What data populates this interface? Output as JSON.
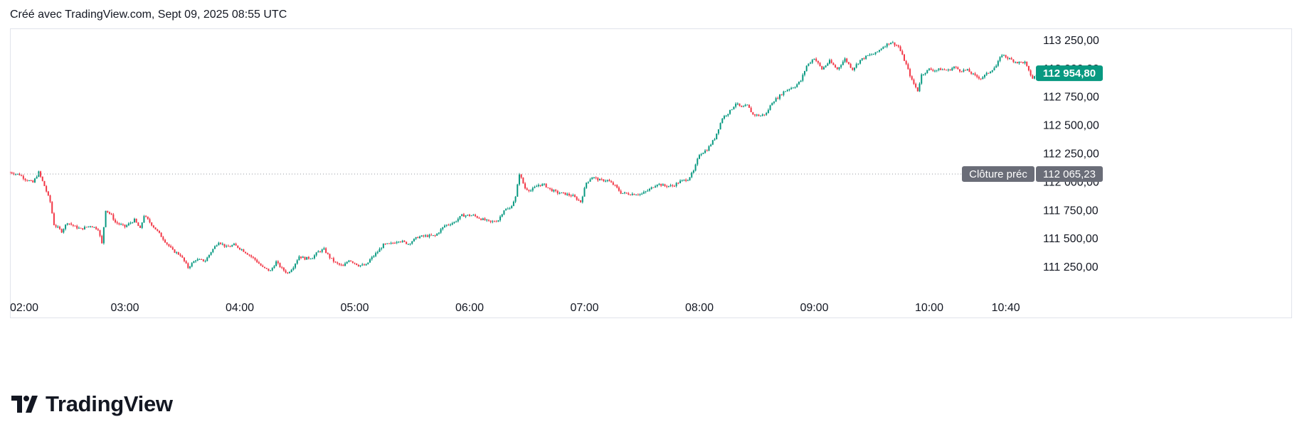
{
  "header": {
    "caption": "Créé avec TradingView.com, Sept 09, 2025 08:55 UTC"
  },
  "brand": {
    "logo_text": "TradingView"
  },
  "colors": {
    "up": "#089981",
    "down": "#f23645",
    "text": "#131722",
    "grid_border": "#e0e3eb",
    "prev_close_badge": "#6a6d78",
    "last_price_badge": "#089981"
  },
  "labels": {
    "last_price": "112 954,80",
    "prev_close_label": "Clôture préc",
    "prev_close_value": "112 065,23"
  },
  "chart_data": {
    "type": "candlestick",
    "title": "",
    "xlabel": "",
    "ylabel": "",
    "ylim": [
      111000,
      113350
    ],
    "y_ticks": [
      {
        "value": 111250,
        "label": "111 250,00"
      },
      {
        "value": 111500,
        "label": "111 500,00"
      },
      {
        "value": 111750,
        "label": "111 750,00"
      },
      {
        "value": 112000,
        "label": "112 000,00"
      },
      {
        "value": 112250,
        "label": "112 250,00"
      },
      {
        "value": 112500,
        "label": "112 500,00"
      },
      {
        "value": 112750,
        "label": "112 750,00"
      },
      {
        "value": 113000,
        "label": "113 000,00"
      },
      {
        "value": 113250,
        "label": "113 250,00"
      }
    ],
    "x_ticks": [
      {
        "value": 120,
        "label": "02:00"
      },
      {
        "value": 180,
        "label": "03:00"
      },
      {
        "value": 240,
        "label": "04:00"
      },
      {
        "value": 300,
        "label": "05:00"
      },
      {
        "value": 360,
        "label": "06:00"
      },
      {
        "value": 420,
        "label": "07:00"
      },
      {
        "value": 480,
        "label": "08:00"
      },
      {
        "value": 540,
        "label": "09:00"
      },
      {
        "value": 600,
        "label": "10:00"
      },
      {
        "value": 640,
        "label": "10:40"
      }
    ],
    "x_unit": "minutes after 00:00 UTC",
    "xlim": [
      120,
      655
    ],
    "last_price": 112954.8,
    "previous_close": 112065.23,
    "close_path": [
      [
        120,
        112080
      ],
      [
        125,
        112060
      ],
      [
        128,
        112020
      ],
      [
        132,
        111990
      ],
      [
        135,
        112080
      ],
      [
        138,
        111960
      ],
      [
        141,
        111820
      ],
      [
        143,
        111620
      ],
      [
        147,
        111560
      ],
      [
        150,
        111640
      ],
      [
        154,
        111600
      ],
      [
        157,
        111580
      ],
      [
        162,
        111610
      ],
      [
        166,
        111580
      ],
      [
        168,
        111450
      ],
      [
        170,
        111750
      ],
      [
        173,
        111700
      ],
      [
        175,
        111640
      ],
      [
        180,
        111600
      ],
      [
        185,
        111660
      ],
      [
        188,
        111580
      ],
      [
        190,
        111700
      ],
      [
        193,
        111640
      ],
      [
        197,
        111560
      ],
      [
        202,
        111450
      ],
      [
        205,
        111390
      ],
      [
        209,
        111350
      ],
      [
        213,
        111240
      ],
      [
        217,
        111310
      ],
      [
        222,
        111300
      ],
      [
        225,
        111380
      ],
      [
        229,
        111470
      ],
      [
        233,
        111420
      ],
      [
        237,
        111440
      ],
      [
        241,
        111400
      ],
      [
        245,
        111350
      ],
      [
        248,
        111310
      ],
      [
        252,
        111240
      ],
      [
        256,
        111210
      ],
      [
        259,
        111290
      ],
      [
        262,
        111230
      ],
      [
        265,
        111190
      ],
      [
        268,
        111250
      ],
      [
        271,
        111340
      ],
      [
        274,
        111320
      ],
      [
        278,
        111330
      ],
      [
        281,
        111380
      ],
      [
        284,
        111400
      ],
      [
        287,
        111330
      ],
      [
        290,
        111280
      ],
      [
        294,
        111250
      ],
      [
        297,
        111310
      ],
      [
        302,
        111260
      ],
      [
        306,
        111260
      ],
      [
        308,
        111310
      ],
      [
        312,
        111380
      ],
      [
        315,
        111440
      ],
      [
        319,
        111450
      ],
      [
        323,
        111480
      ],
      [
        328,
        111450
      ],
      [
        333,
        111510
      ],
      [
        338,
        111520
      ],
      [
        342,
        111520
      ],
      [
        347,
        111610
      ],
      [
        352,
        111640
      ],
      [
        356,
        111700
      ],
      [
        359,
        111700
      ],
      [
        362,
        111700
      ],
      [
        366,
        111670
      ],
      [
        371,
        111640
      ],
      [
        375,
        111660
      ],
      [
        378,
        111750
      ],
      [
        381,
        111760
      ],
      [
        384,
        111860
      ],
      [
        386,
        112070
      ],
      [
        389,
        111940
      ],
      [
        392,
        111920
      ],
      [
        396,
        111970
      ],
      [
        399,
        111970
      ],
      [
        402,
        111930
      ],
      [
        406,
        111900
      ],
      [
        410,
        111890
      ],
      [
        414,
        111870
      ],
      [
        418,
        111820
      ],
      [
        421,
        111990
      ],
      [
        424,
        112040
      ],
      [
        428,
        112010
      ],
      [
        432,
        112010
      ],
      [
        436,
        111960
      ],
      [
        439,
        111900
      ],
      [
        443,
        111890
      ],
      [
        446,
        111890
      ],
      [
        450,
        111890
      ],
      [
        454,
        111930
      ],
      [
        458,
        111980
      ],
      [
        462,
        111960
      ],
      [
        466,
        111960
      ],
      [
        470,
        112000
      ],
      [
        474,
        112020
      ],
      [
        477,
        112090
      ],
      [
        480,
        112240
      ],
      [
        484,
        112280
      ],
      [
        488,
        112380
      ],
      [
        492,
        112560
      ],
      [
        496,
        112620
      ],
      [
        499,
        112690
      ],
      [
        502,
        112650
      ],
      [
        505,
        112670
      ],
      [
        508,
        112590
      ],
      [
        512,
        112580
      ],
      [
        515,
        112600
      ],
      [
        518,
        112700
      ],
      [
        521,
        112740
      ],
      [
        524,
        112790
      ],
      [
        527,
        112820
      ],
      [
        530,
        112840
      ],
      [
        533,
        112890
      ],
      [
        536,
        113020
      ],
      [
        540,
        113090
      ],
      [
        544,
        112990
      ],
      [
        548,
        113060
      ],
      [
        552,
        112990
      ],
      [
        556,
        113080
      ],
      [
        560,
        112990
      ],
      [
        564,
        113070
      ],
      [
        568,
        113110
      ],
      [
        572,
        113130
      ],
      [
        576,
        113190
      ],
      [
        580,
        113230
      ],
      [
        584,
        113190
      ],
      [
        588,
        113030
      ],
      [
        591,
        112890
      ],
      [
        594,
        112800
      ],
      [
        596,
        112940
      ],
      [
        600,
        112990
      ],
      [
        603,
        112980
      ],
      [
        606,
        112990
      ],
      [
        610,
        112980
      ],
      [
        613,
        113010
      ],
      [
        616,
        112980
      ],
      [
        620,
        112980
      ],
      [
        624,
        112930
      ],
      [
        627,
        112910
      ],
      [
        631,
        112960
      ],
      [
        635,
        113020
      ],
      [
        638,
        113120
      ],
      [
        642,
        113080
      ],
      [
        646,
        113050
      ],
      [
        650,
        113050
      ],
      [
        652,
        112970
      ],
      [
        654,
        112910
      ],
      [
        656,
        112940
      ],
      [
        658,
        112960
      ]
    ]
  }
}
